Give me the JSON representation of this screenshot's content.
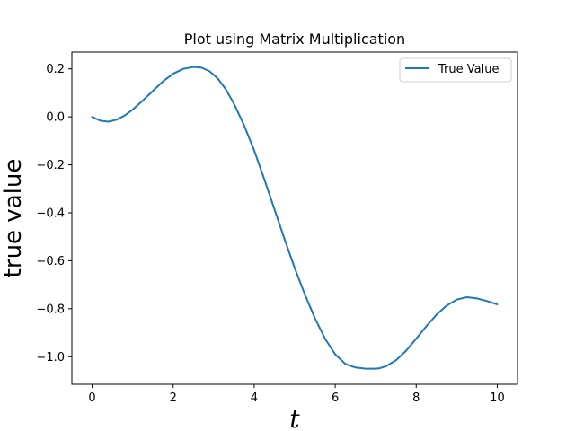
{
  "chart_data": {
    "type": "line",
    "title": "Plot using Matrix Multiplication",
    "xlabel": "t",
    "ylabel": "true value",
    "xlim": [
      -0.5,
      10.5
    ],
    "ylim": [
      -1.115,
      0.27
    ],
    "x_ticks": [
      0,
      2,
      4,
      6,
      8,
      10
    ],
    "x_tick_labels": [
      "0",
      "2",
      "4",
      "6",
      "8",
      "10"
    ],
    "y_ticks": [
      0.2,
      0.0,
      -0.2,
      -0.4,
      -0.6,
      -0.8,
      -1.0
    ],
    "y_tick_labels": [
      "0.2",
      "0.0",
      "−0.2",
      "−0.4",
      "−0.6",
      "−0.8",
      "−1.0"
    ],
    "grid": false,
    "legend_position": "top-right",
    "series": [
      {
        "name": "True Value",
        "color": "#1f77b4",
        "x": [
          0,
          0.2,
          0.4,
          0.6,
          0.8,
          1.0,
          1.25,
          1.5,
          1.75,
          2.0,
          2.25,
          2.5,
          2.7,
          2.9,
          3.1,
          3.3,
          3.5,
          3.75,
          4.0,
          4.25,
          4.5,
          4.75,
          5.0,
          5.25,
          5.5,
          5.75,
          6.0,
          6.25,
          6.5,
          6.75,
          7.0,
          7.1,
          7.25,
          7.5,
          7.75,
          8.0,
          8.25,
          8.5,
          8.75,
          9.0,
          9.25,
          9.5,
          9.75,
          10.0
        ],
        "y": [
          0.0,
          -0.016,
          -0.02,
          -0.012,
          0.005,
          0.03,
          0.068,
          0.108,
          0.148,
          0.18,
          0.2,
          0.208,
          0.205,
          0.19,
          0.16,
          0.115,
          0.055,
          -0.035,
          -0.14,
          -0.26,
          -0.385,
          -0.51,
          -0.63,
          -0.74,
          -0.84,
          -0.925,
          -0.99,
          -1.03,
          -1.045,
          -1.05,
          -1.05,
          -1.048,
          -1.04,
          -1.015,
          -0.975,
          -0.925,
          -0.873,
          -0.825,
          -0.787,
          -0.762,
          -0.752,
          -0.757,
          -0.768,
          -0.782
        ]
      }
    ]
  }
}
